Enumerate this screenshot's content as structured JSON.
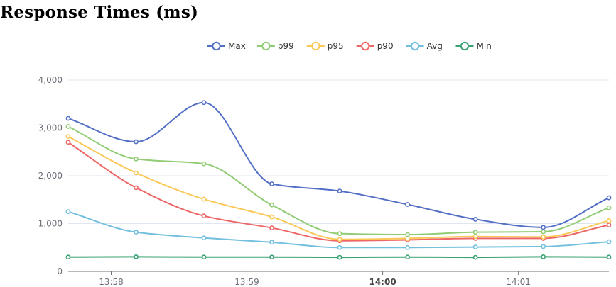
{
  "title": "Response Times (ms)",
  "chart_data": {
    "type": "line",
    "title": "Response Times (ms)",
    "xlabel": "",
    "ylabel": "",
    "ylim": [
      0,
      4000
    ],
    "yticks": [
      "0",
      "1,000",
      "2,000",
      "3,000",
      "4,000"
    ],
    "ytick_values": [
      0,
      1000,
      2000,
      3000,
      4000
    ],
    "x_time_range": [
      "13:57:41",
      "14:01:40"
    ],
    "xticks": [
      {
        "time": "13:58:00",
        "label": "13:58",
        "bold": false
      },
      {
        "time": "13:59:00",
        "label": "13:59",
        "bold": false
      },
      {
        "time": "14:00:00",
        "label": "14:00",
        "bold": true
      },
      {
        "time": "14:01:00",
        "label": "14:01",
        "bold": false
      }
    ],
    "x": [
      "13:57:41",
      "13:58:11",
      "13:58:41",
      "13:59:11",
      "13:59:41",
      "14:00:11",
      "14:00:41",
      "14:01:11",
      "14:01:40"
    ],
    "series": [
      {
        "name": "Max",
        "color": "#5470c6",
        "values": [
          3200,
          2710,
          3530,
          1830,
          1680,
          1400,
          1090,
          920,
          1540
        ]
      },
      {
        "name": "p99",
        "color": "#91cc75",
        "values": [
          3030,
          2350,
          2250,
          1390,
          790,
          770,
          820,
          830,
          1330
        ]
      },
      {
        "name": "p95",
        "color": "#fac858",
        "values": [
          2820,
          2060,
          1510,
          1140,
          670,
          690,
          730,
          720,
          1060
        ]
      },
      {
        "name": "p90",
        "color": "#ee6666",
        "values": [
          2700,
          1750,
          1160,
          910,
          640,
          660,
          690,
          690,
          970
        ]
      },
      {
        "name": "Avg",
        "color": "#73c0de",
        "values": [
          1250,
          820,
          700,
          610,
          500,
          500,
          510,
          520,
          620
        ]
      },
      {
        "name": "Min",
        "color": "#3ba272",
        "values": [
          300,
          305,
          300,
          300,
          295,
          300,
          295,
          305,
          300
        ]
      }
    ],
    "legend_position": "top-center",
    "grid": true
  }
}
